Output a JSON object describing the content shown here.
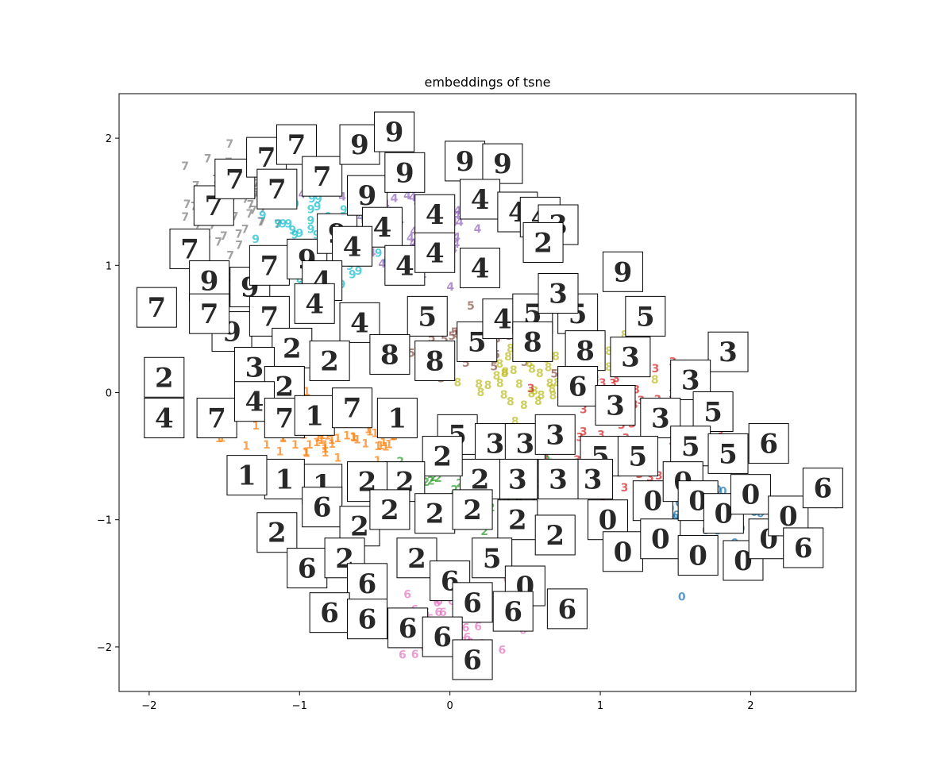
{
  "chart_data": {
    "type": "scatter",
    "title": "embeddings of tsne",
    "xlabel": "",
    "ylabel": "",
    "xlim": [
      -2.2,
      2.7
    ],
    "ylim": [
      -2.35,
      2.35
    ],
    "xticks": [
      -2,
      -1,
      0,
      1,
      2
    ],
    "yticks": [
      -2,
      -1,
      0,
      1,
      2
    ],
    "xtick_labels": [
      "−2",
      "−1",
      "0",
      "1",
      "2"
    ],
    "ytick_labels": [
      "−2",
      "−1",
      "0",
      "1",
      "2"
    ],
    "grid": false,
    "legend": "none",
    "point_labels_are_digit_classes": true,
    "class_colors": {
      "0": "#1f77b4",
      "1": "#ff7f0e",
      "2": "#2ca02c",
      "3": "#d62728",
      "4": "#9467bd",
      "5": "#8c564b",
      "6": "#e377c2",
      "7": "#7f7f7f",
      "8": "#bcbd22",
      "9": "#17becf"
    },
    "clusters": [
      {
        "label": "7",
        "center": [
          -1.4,
          1.5
        ],
        "spread": [
          0.35,
          0.45
        ],
        "count": 60
      },
      {
        "label": "9",
        "center": [
          -0.9,
          1.15
        ],
        "spread": [
          0.45,
          0.45
        ],
        "count": 60
      },
      {
        "label": "4",
        "center": [
          -0.2,
          1.3
        ],
        "spread": [
          0.45,
          0.45
        ],
        "count": 60
      },
      {
        "label": "5",
        "center": [
          0.15,
          0.4
        ],
        "spread": [
          0.4,
          0.25
        ],
        "count": 40
      },
      {
        "label": "8",
        "center": [
          0.6,
          0.15
        ],
        "spread": [
          0.55,
          0.35
        ],
        "count": 55
      },
      {
        "label": "3",
        "center": [
          1.15,
          -0.25
        ],
        "spread": [
          0.7,
          0.45
        ],
        "count": 60
      },
      {
        "label": "1",
        "center": [
          -0.8,
          -0.35
        ],
        "spread": [
          0.7,
          0.22
        ],
        "count": 60
      },
      {
        "label": "2",
        "center": [
          0.15,
          -0.8
        ],
        "spread": [
          0.7,
          0.35
        ],
        "count": 60
      },
      {
        "label": "6",
        "center": [
          0.1,
          -1.75
        ],
        "spread": [
          0.5,
          0.3
        ],
        "count": 55
      },
      {
        "label": "0",
        "center": [
          1.7,
          -1.0
        ],
        "spread": [
          0.55,
          0.3
        ],
        "count": 60
      }
    ],
    "thumbnails": [
      {
        "x": -1.95,
        "y": 0.67,
        "digit": "7"
      },
      {
        "x": -1.73,
        "y": 1.13,
        "digit": "7"
      },
      {
        "x": -1.57,
        "y": 1.47,
        "digit": "7"
      },
      {
        "x": -1.43,
        "y": 1.68,
        "digit": "7"
      },
      {
        "x": -1.22,
        "y": 1.85,
        "digit": "7"
      },
      {
        "x": -1.02,
        "y": 1.95,
        "digit": "7"
      },
      {
        "x": -0.85,
        "y": 1.7,
        "digit": "7"
      },
      {
        "x": -1.15,
        "y": 1.6,
        "digit": "7"
      },
      {
        "x": -1.6,
        "y": 0.88,
        "digit": "9"
      },
      {
        "x": -1.33,
        "y": 0.83,
        "digit": "9"
      },
      {
        "x": -1.2,
        "y": 1.0,
        "digit": "7"
      },
      {
        "x": -0.95,
        "y": 1.05,
        "digit": "9"
      },
      {
        "x": -0.75,
        "y": 1.25,
        "digit": "9"
      },
      {
        "x": -0.55,
        "y": 1.55,
        "digit": "9"
      },
      {
        "x": -0.6,
        "y": 1.95,
        "digit": "9"
      },
      {
        "x": -0.37,
        "y": 2.05,
        "digit": "9"
      },
      {
        "x": -0.3,
        "y": 1.73,
        "digit": "9"
      },
      {
        "x": 0.1,
        "y": 1.82,
        "digit": "9"
      },
      {
        "x": 0.35,
        "y": 1.8,
        "digit": "9"
      },
      {
        "x": 0.2,
        "y": 1.52,
        "digit": "4"
      },
      {
        "x": -0.1,
        "y": 1.4,
        "digit": "4"
      },
      {
        "x": -0.45,
        "y": 1.3,
        "digit": "4"
      },
      {
        "x": -0.65,
        "y": 1.15,
        "digit": "4"
      },
      {
        "x": -0.85,
        "y": 0.88,
        "digit": "4"
      },
      {
        "x": -0.3,
        "y": 1.0,
        "digit": "4"
      },
      {
        "x": -0.1,
        "y": 1.1,
        "digit": "4"
      },
      {
        "x": 0.2,
        "y": 0.98,
        "digit": "4"
      },
      {
        "x": 0.45,
        "y": 1.42,
        "digit": "4"
      },
      {
        "x": 0.6,
        "y": 1.38,
        "digit": "4"
      },
      {
        "x": 0.72,
        "y": 1.32,
        "digit": "3"
      },
      {
        "x": 0.62,
        "y": 1.18,
        "digit": "2"
      },
      {
        "x": -0.6,
        "y": 0.55,
        "digit": "4"
      },
      {
        "x": -0.9,
        "y": 0.7,
        "digit": "4"
      },
      {
        "x": -1.45,
        "y": 0.48,
        "digit": "9"
      },
      {
        "x": -1.6,
        "y": 0.62,
        "digit": "7"
      },
      {
        "x": -1.2,
        "y": 0.6,
        "digit": "7"
      },
      {
        "x": -1.05,
        "y": 0.35,
        "digit": "2"
      },
      {
        "x": -1.3,
        "y": 0.2,
        "digit": "3"
      },
      {
        "x": -0.8,
        "y": 0.25,
        "digit": "2"
      },
      {
        "x": -1.1,
        "y": 0.05,
        "digit": "2"
      },
      {
        "x": -1.9,
        "y": 0.12,
        "digit": "2"
      },
      {
        "x": -1.9,
        "y": -0.2,
        "digit": "4"
      },
      {
        "x": -1.55,
        "y": -0.2,
        "digit": "7"
      },
      {
        "x": -1.3,
        "y": -0.07,
        "digit": "4"
      },
      {
        "x": -1.1,
        "y": -0.2,
        "digit": "7"
      },
      {
        "x": -0.9,
        "y": -0.18,
        "digit": "1"
      },
      {
        "x": -0.65,
        "y": -0.12,
        "digit": "7"
      },
      {
        "x": -0.35,
        "y": -0.2,
        "digit": "1"
      },
      {
        "x": -0.15,
        "y": 0.6,
        "digit": "5"
      },
      {
        "x": -0.4,
        "y": 0.3,
        "digit": "8"
      },
      {
        "x": -0.1,
        "y": 0.25,
        "digit": "8"
      },
      {
        "x": 0.18,
        "y": 0.4,
        "digit": "5"
      },
      {
        "x": 0.35,
        "y": 0.58,
        "digit": "4"
      },
      {
        "x": 0.55,
        "y": 0.62,
        "digit": "5"
      },
      {
        "x": 0.55,
        "y": 0.4,
        "digit": "8"
      },
      {
        "x": 0.85,
        "y": 0.62,
        "digit": "5"
      },
      {
        "x": 0.72,
        "y": 0.78,
        "digit": "3"
      },
      {
        "x": 1.15,
        "y": 0.95,
        "digit": "9"
      },
      {
        "x": 1.3,
        "y": 0.6,
        "digit": "5"
      },
      {
        "x": 0.9,
        "y": 0.33,
        "digit": "8"
      },
      {
        "x": 1.2,
        "y": 0.28,
        "digit": "3"
      },
      {
        "x": 1.85,
        "y": 0.32,
        "digit": "3"
      },
      {
        "x": 1.6,
        "y": 0.1,
        "digit": "3"
      },
      {
        "x": 0.85,
        "y": 0.05,
        "digit": "6"
      },
      {
        "x": 1.1,
        "y": -0.1,
        "digit": "3"
      },
      {
        "x": 1.4,
        "y": -0.2,
        "digit": "3"
      },
      {
        "x": 1.75,
        "y": -0.15,
        "digit": "5"
      },
      {
        "x": 1.6,
        "y": -0.42,
        "digit": "5"
      },
      {
        "x": 1.85,
        "y": -0.48,
        "digit": "5"
      },
      {
        "x": 2.12,
        "y": -0.4,
        "digit": "6"
      },
      {
        "x": 0.05,
        "y": -0.33,
        "digit": "5"
      },
      {
        "x": 0.3,
        "y": -0.4,
        "digit": "3"
      },
      {
        "x": 0.5,
        "y": -0.4,
        "digit": "3"
      },
      {
        "x": 0.7,
        "y": -0.33,
        "digit": "3"
      },
      {
        "x": 1.0,
        "y": -0.5,
        "digit": "5"
      },
      {
        "x": 1.25,
        "y": -0.5,
        "digit": "5"
      },
      {
        "x": 0.95,
        "y": -0.68,
        "digit": "3"
      },
      {
        "x": 0.72,
        "y": -0.68,
        "digit": "3"
      },
      {
        "x": 0.45,
        "y": -0.68,
        "digit": "3"
      },
      {
        "x": 0.2,
        "y": -0.68,
        "digit": "2"
      },
      {
        "x": -0.05,
        "y": -0.5,
        "digit": "2"
      },
      {
        "x": -0.3,
        "y": -0.7,
        "digit": "2"
      },
      {
        "x": -0.55,
        "y": -0.7,
        "digit": "2"
      },
      {
        "x": -0.85,
        "y": -0.72,
        "digit": "1"
      },
      {
        "x": -1.1,
        "y": -0.68,
        "digit": "1"
      },
      {
        "x": -1.35,
        "y": -0.65,
        "digit": "1"
      },
      {
        "x": -0.85,
        "y": -0.9,
        "digit": "6"
      },
      {
        "x": -0.6,
        "y": -1.05,
        "digit": "2"
      },
      {
        "x": -0.4,
        "y": -0.92,
        "digit": "2"
      },
      {
        "x": -0.1,
        "y": -0.95,
        "digit": "2"
      },
      {
        "x": 0.15,
        "y": -0.92,
        "digit": "2"
      },
      {
        "x": 0.45,
        "y": -1.0,
        "digit": "2"
      },
      {
        "x": 0.7,
        "y": -1.12,
        "digit": "2"
      },
      {
        "x": -1.15,
        "y": -1.1,
        "digit": "2"
      },
      {
        "x": -0.95,
        "y": -1.38,
        "digit": "6"
      },
      {
        "x": -0.7,
        "y": -1.3,
        "digit": "2"
      },
      {
        "x": -0.55,
        "y": -1.5,
        "digit": "6"
      },
      {
        "x": -0.22,
        "y": -1.3,
        "digit": "2"
      },
      {
        "x": 0.0,
        "y": -1.48,
        "digit": "6"
      },
      {
        "x": 0.28,
        "y": -1.3,
        "digit": "5"
      },
      {
        "x": 0.5,
        "y": -1.52,
        "digit": "0"
      },
      {
        "x": 0.15,
        "y": -1.65,
        "digit": "6"
      },
      {
        "x": -0.8,
        "y": -1.73,
        "digit": "6"
      },
      {
        "x": -0.55,
        "y": -1.78,
        "digit": "6"
      },
      {
        "x": -0.28,
        "y": -1.85,
        "digit": "6"
      },
      {
        "x": -0.05,
        "y": -1.92,
        "digit": "6"
      },
      {
        "x": 0.15,
        "y": -2.1,
        "digit": "6"
      },
      {
        "x": 0.42,
        "y": -1.72,
        "digit": "6"
      },
      {
        "x": 0.78,
        "y": -1.7,
        "digit": "6"
      },
      {
        "x": 1.05,
        "y": -1.0,
        "digit": "0"
      },
      {
        "x": 1.15,
        "y": -1.25,
        "digit": "0"
      },
      {
        "x": 1.35,
        "y": -0.85,
        "digit": "0"
      },
      {
        "x": 1.4,
        "y": -1.15,
        "digit": "0"
      },
      {
        "x": 1.55,
        "y": -0.7,
        "digit": "0"
      },
      {
        "x": 1.65,
        "y": -0.85,
        "digit": "0"
      },
      {
        "x": 1.65,
        "y": -1.28,
        "digit": "0"
      },
      {
        "x": 1.82,
        "y": -0.95,
        "digit": "0"
      },
      {
        "x": 1.95,
        "y": -1.32,
        "digit": "0"
      },
      {
        "x": 2.0,
        "y": -0.8,
        "digit": "0"
      },
      {
        "x": 2.12,
        "y": -1.15,
        "digit": "0"
      },
      {
        "x": 2.25,
        "y": -0.97,
        "digit": "0"
      },
      {
        "x": 2.35,
        "y": -1.22,
        "digit": "6"
      },
      {
        "x": 2.48,
        "y": -0.75,
        "digit": "6"
      }
    ]
  }
}
